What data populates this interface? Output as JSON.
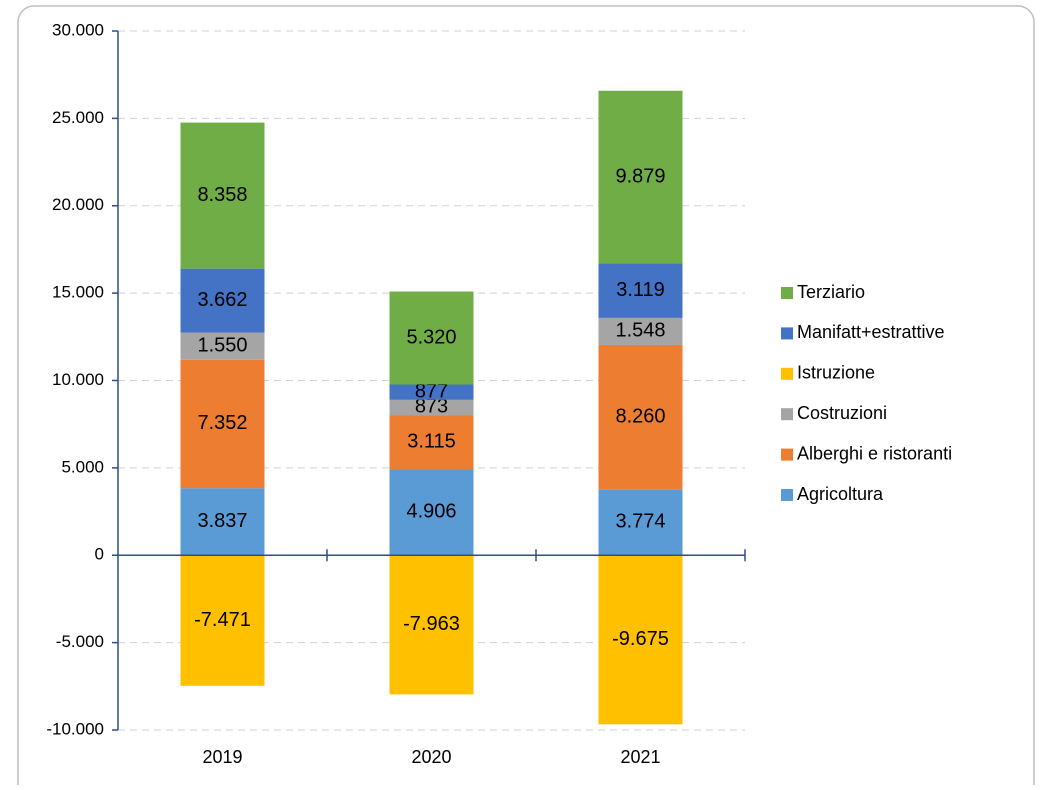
{
  "chart_data": {
    "type": "stacked-bar",
    "categories": [
      "2019",
      "2020",
      "2021"
    ],
    "series": [
      {
        "name": "Agricoltura",
        "color": "#5b9bd5",
        "values": [
          3837,
          4906,
          3774
        ],
        "value_labels": [
          "3.837",
          "4.906",
          "3.774"
        ]
      },
      {
        "name": "Alberghi e ristoranti",
        "color": "#ed7d31",
        "values": [
          7352,
          3115,
          8260
        ],
        "value_labels": [
          "7.352",
          "3.115",
          "8.260"
        ]
      },
      {
        "name": "Costruzioni",
        "color": "#a5a5a5",
        "values": [
          1550,
          873,
          1548
        ],
        "value_labels": [
          "1.550",
          "873",
          "1.548"
        ]
      },
      {
        "name": "Istruzione",
        "color": "#ffc000",
        "values": [
          -7471,
          -7963,
          -9675
        ],
        "value_labels": [
          "-7.471",
          "-7.963",
          "-9.675"
        ]
      },
      {
        "name": "Manifatt+estrattive",
        "color": "#4472c4",
        "values": [
          3662,
          877,
          3119
        ],
        "value_labels": [
          "3.662",
          "877",
          "3.119"
        ]
      },
      {
        "name": "Terziario",
        "color": "#70ad47",
        "values": [
          8358,
          5320,
          9879
        ],
        "value_labels": [
          "8.358",
          "5.320",
          "9.879"
        ]
      }
    ],
    "ylim": [
      -10000,
      30000
    ],
    "yticks": [
      {
        "value": -10000,
        "label": "-10.000"
      },
      {
        "value": -5000,
        "label": "-5.000"
      },
      0,
      {
        "value": 5000,
        "label": "5.000"
      },
      {
        "value": 10000,
        "label": "10.000"
      },
      {
        "value": 15000,
        "label": "15.000"
      },
      {
        "value": 20000,
        "label": "20.000"
      },
      {
        "value": 25000,
        "label": "25.000"
      },
      {
        "value": 30000,
        "label": "30.000"
      }
    ],
    "grid": true,
    "legend": "right"
  }
}
